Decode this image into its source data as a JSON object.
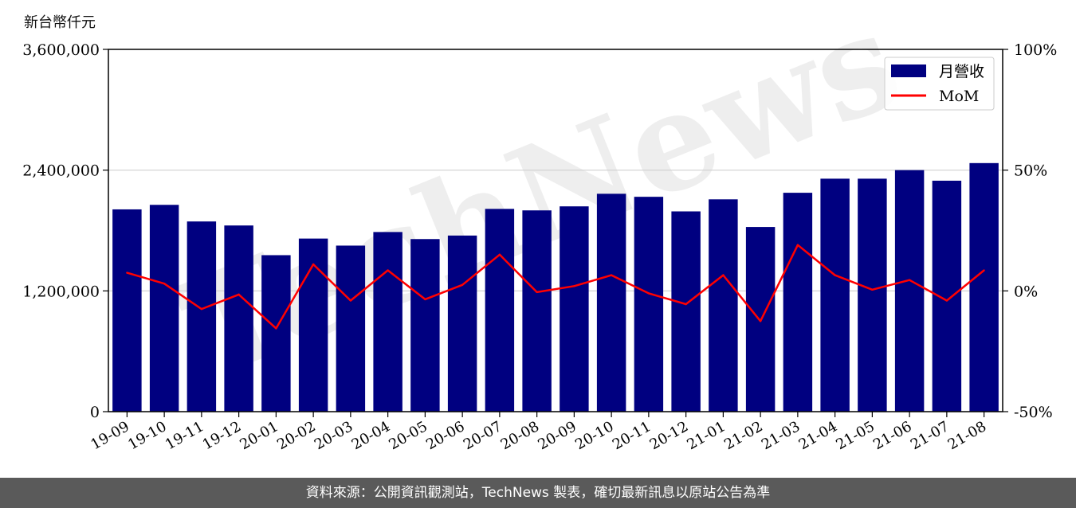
{
  "unit_label": "新台幣仟元",
  "footer": "資料來源：公開資訊觀測站，TechNews 製表，確切最新訊息以原站公告為準",
  "watermark": "TechNews",
  "colors": {
    "bar": "#000080",
    "line": "#ff0000",
    "grid": "#d0d0d0",
    "footer_bg": "#5a5a5a",
    "watermark": "#e8e8e8"
  },
  "chart_data": {
    "type": "bar",
    "categories": [
      "19-09",
      "19-10",
      "19-11",
      "19-12",
      "20-01",
      "20-02",
      "20-03",
      "20-04",
      "20-05",
      "20-06",
      "20-07",
      "20-08",
      "20-09",
      "20-10",
      "20-11",
      "20-12",
      "21-01",
      "21-02",
      "21-03",
      "21-04",
      "21-05",
      "21-06",
      "21-07",
      "21-08"
    ],
    "series": [
      {
        "name": "月營收",
        "type": "bar",
        "axis": "left",
        "values": [
          2010000,
          2055000,
          1890000,
          1850000,
          1555000,
          1720000,
          1650000,
          1785000,
          1715000,
          1750000,
          2015000,
          2000000,
          2040000,
          2165000,
          2135000,
          1990000,
          2110000,
          1835000,
          2175000,
          2315000,
          2315000,
          2400000,
          2295000,
          2470000
        ]
      },
      {
        "name": "MoM",
        "type": "line",
        "axis": "right",
        "values": [
          7.5,
          3.0,
          -7.5,
          -1.5,
          -15.5,
          11.0,
          -4.0,
          8.5,
          -3.5,
          2.5,
          15.0,
          -0.5,
          2.0,
          6.5,
          -1.0,
          -5.5,
          6.5,
          -12.5,
          19.0,
          6.5,
          0.5,
          4.5,
          -4.0,
          8.5
        ]
      }
    ],
    "y_left": {
      "min": 0,
      "max": 3600000,
      "ticks": [
        "0",
        "1,200,000",
        "2,400,000",
        "3,600,000"
      ],
      "tick_values": [
        0,
        1200000,
        2400000,
        3600000
      ]
    },
    "y_right": {
      "min": -50,
      "max": 100,
      "ticks": [
        "-50%",
        "0%",
        "50%",
        "100%"
      ],
      "tick_values": [
        -50,
        0,
        50,
        100
      ]
    },
    "legend": [
      "月營收",
      "MoM"
    ],
    "legend_position": "top-right",
    "grid": "horizontal"
  }
}
